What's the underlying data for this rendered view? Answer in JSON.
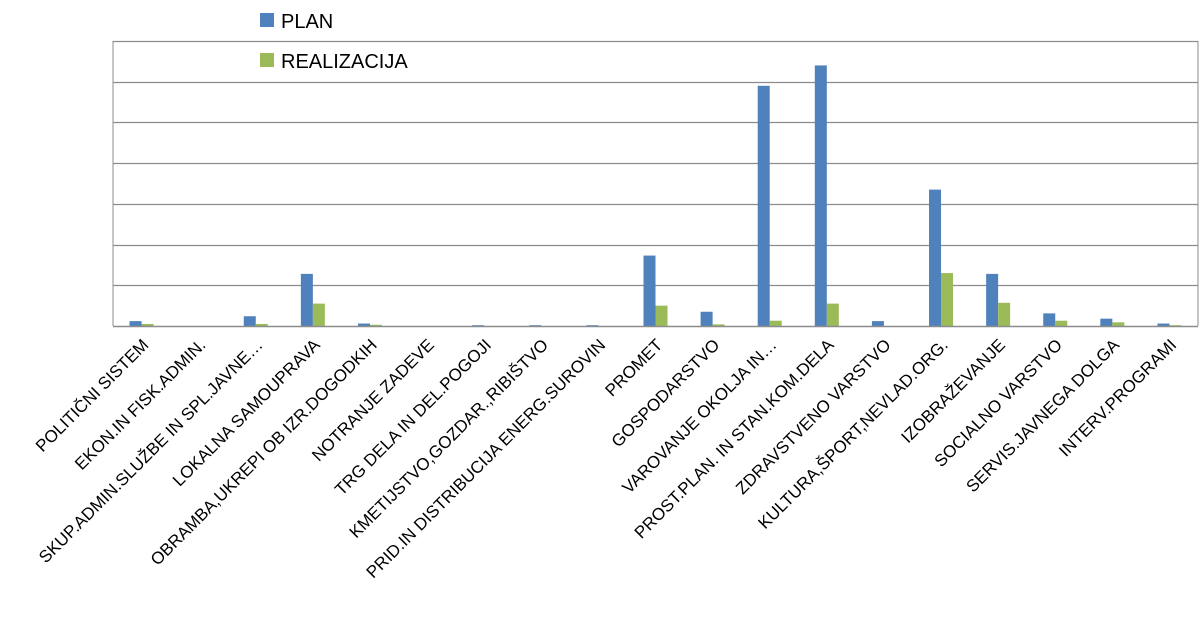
{
  "chart_data": {
    "type": "bar",
    "categories": [
      "POLITIČNI SISTEM",
      "EKON.IN FISK.ADMIN.",
      "SKUP.ADMIN.SLUŽBE IN SPL.JAVNE…",
      "LOKALNA SAMOUPRAVA",
      "OBRAMBA,UKREPI OB IZR.DOGODKIH",
      "NOTRANJE ZADEVE",
      "TRG DELA IN DEL.POGOJI",
      "KMETIJSTVO,GOZDAR.,RIBIŠTVO",
      "PRID.IN DISTRIBUCIJA ENERG.SUROVIN",
      "PROMET",
      "GOSPODARSTVO",
      "VAROVANJE OKOLJA IN…",
      "PROST.PLAN. IN STAN.KOM.DELA",
      "ZDRAVSTVENO VARSTVO",
      "KULTURA,ŠPORT,NEVLAD.ORG.",
      "IZOBRAŽEVANJE",
      "SOCIALNO VARSTVO",
      "SERVIS.JAVNEGA DOLGA",
      "INTERV.PROGRAMI"
    ],
    "series": [
      {
        "name": "PLAN",
        "color": "#4F81BD",
        "values": [
          0.12,
          0.0,
          0.24,
          1.28,
          0.06,
          0.0,
          0.02,
          0.02,
          0.02,
          1.73,
          0.35,
          5.9,
          6.4,
          0.12,
          3.35,
          1.28,
          0.31,
          0.18,
          0.06
        ]
      },
      {
        "name": "REALIZACIJA",
        "color": "#9BBB59",
        "values": [
          0.05,
          0.0,
          0.05,
          0.55,
          0.03,
          0.0,
          0.0,
          0.0,
          0.0,
          0.5,
          0.04,
          0.13,
          0.55,
          0.0,
          1.3,
          0.57,
          0.13,
          0.09,
          0.02
        ]
      }
    ],
    "ylim": [
      0,
      7
    ],
    "y_gridlines": 7,
    "grid": true,
    "legend_position": "top-left",
    "ytick_labels_visible": false
  }
}
